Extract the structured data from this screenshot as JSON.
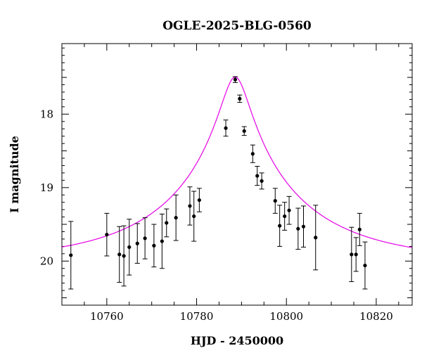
{
  "chart_data": {
    "type": "scatter",
    "title": "OGLE-2025-BLG-0560",
    "xlabel": "HJD - 2450000",
    "ylabel": "I magnitude",
    "xlim": [
      10750,
      10828
    ],
    "ylim": [
      20.6,
      17.04
    ],
    "y_inverted": true,
    "xticks": [
      10760,
      10780,
      10800,
      10820
    ],
    "yticks": [
      18,
      19,
      20
    ],
    "grid": false,
    "colors": {
      "points": "#000000",
      "model": "#e600e6",
      "axes": "#000000"
    },
    "series": [
      {
        "kind": "observations",
        "points": [
          {
            "x": 10752.0,
            "y": 19.92,
            "err": 0.46
          },
          {
            "x": 10760.0,
            "y": 19.64,
            "err": 0.29
          },
          {
            "x": 10762.8,
            "y": 19.91,
            "err": 0.38
          },
          {
            "x": 10763.8,
            "y": 19.93,
            "err": 0.41
          },
          {
            "x": 10765.0,
            "y": 19.81,
            "err": 0.38
          },
          {
            "x": 10766.8,
            "y": 19.76,
            "err": 0.27
          },
          {
            "x": 10768.5,
            "y": 19.69,
            "err": 0.28
          },
          {
            "x": 10770.5,
            "y": 19.79,
            "err": 0.29
          },
          {
            "x": 10772.3,
            "y": 19.73,
            "err": 0.37
          },
          {
            "x": 10773.3,
            "y": 19.48,
            "err": 0.19
          },
          {
            "x": 10775.4,
            "y": 19.41,
            "err": 0.31
          },
          {
            "x": 10778.5,
            "y": 19.25,
            "err": 0.26
          },
          {
            "x": 10779.4,
            "y": 19.39,
            "err": 0.34
          },
          {
            "x": 10780.6,
            "y": 19.17,
            "err": 0.16
          },
          {
            "x": 10786.5,
            "y": 18.19,
            "err": 0.11
          },
          {
            "x": 10788.6,
            "y": 17.53,
            "err": 0.04
          },
          {
            "x": 10789.6,
            "y": 17.79,
            "err": 0.05
          },
          {
            "x": 10790.6,
            "y": 18.23,
            "err": 0.06
          },
          {
            "x": 10792.5,
            "y": 18.54,
            "err": 0.12
          },
          {
            "x": 10793.5,
            "y": 18.84,
            "err": 0.13
          },
          {
            "x": 10794.5,
            "y": 18.91,
            "err": 0.11
          },
          {
            "x": 10797.5,
            "y": 19.18,
            "err": 0.17
          },
          {
            "x": 10798.5,
            "y": 19.52,
            "err": 0.28
          },
          {
            "x": 10799.6,
            "y": 19.39,
            "err": 0.19
          },
          {
            "x": 10800.6,
            "y": 19.31,
            "err": 0.19
          },
          {
            "x": 10802.6,
            "y": 19.56,
            "err": 0.28
          },
          {
            "x": 10803.8,
            "y": 19.53,
            "err": 0.28
          },
          {
            "x": 10806.5,
            "y": 19.68,
            "err": 0.44
          },
          {
            "x": 10814.5,
            "y": 19.91,
            "err": 0.37
          },
          {
            "x": 10815.5,
            "y": 19.91,
            "err": 0.23
          },
          {
            "x": 10816.3,
            "y": 19.57,
            "err": 0.22
          },
          {
            "x": 10817.5,
            "y": 20.06,
            "err": 0.32
          }
        ]
      },
      {
        "kind": "model",
        "t0": 10788.6,
        "tE": 30,
        "u0": 0.1,
        "base_mag": 20.0
      }
    ]
  }
}
